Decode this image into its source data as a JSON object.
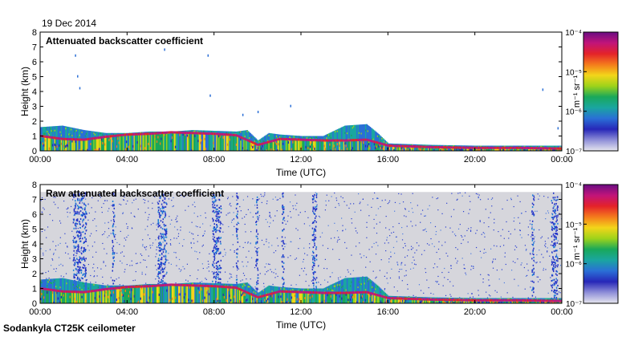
{
  "date": "19 Dec 2014",
  "footer": "Sodankyla CT25K ceilometer",
  "colorbar_colors": [
    "#6a0d83",
    "#c1147a",
    "#e4222a",
    "#f47b1c",
    "#f3d51a",
    "#9ed31a",
    "#19a85a",
    "#1aa6a0",
    "#2a6fd6",
    "#2727b8",
    "#8f8fd8",
    "#e6e6ee"
  ],
  "chart_data": [
    {
      "type": "heatmap",
      "title": "Attenuated backscatter coefficient",
      "xlabel": "Time (UTC)",
      "ylabel": "Height (km)",
      "xlim": [
        0,
        24
      ],
      "ylim": [
        0,
        8
      ],
      "x_ticks": [
        "00:00",
        "04:00",
        "08:00",
        "12:00",
        "16:00",
        "20:00",
        "00:00"
      ],
      "y_ticks": [
        "0",
        "1",
        "2",
        "3",
        "4",
        "5",
        "6",
        "7",
        "8"
      ],
      "colorbar": {
        "scale": "log",
        "range": [
          1e-07,
          0.0001
        ],
        "unit": "m⁻¹ sr⁻¹",
        "ticks": [
          "10⁻⁷",
          "10⁻⁶",
          "10⁻⁵",
          "10⁻⁴"
        ]
      },
      "background_fill": "white",
      "boundary_layer": [
        {
          "x": 0,
          "y": 1.6
        },
        {
          "x": 1,
          "y": 1.7
        },
        {
          "x": 2,
          "y": 1.4
        },
        {
          "x": 3,
          "y": 1.2
        },
        {
          "x": 4,
          "y": 1.2
        },
        {
          "x": 5,
          "y": 1.3
        },
        {
          "x": 6,
          "y": 1.3
        },
        {
          "x": 7,
          "y": 1.4
        },
        {
          "x": 8,
          "y": 1.35
        },
        {
          "x": 9,
          "y": 1.3
        },
        {
          "x": 9.5,
          "y": 1.4
        },
        {
          "x": 10,
          "y": 0.7
        },
        {
          "x": 10.5,
          "y": 1.2
        },
        {
          "x": 11,
          "y": 1.1
        },
        {
          "x": 12,
          "y": 1.0
        },
        {
          "x": 13,
          "y": 1.0
        },
        {
          "x": 14,
          "y": 1.7
        },
        {
          "x": 15,
          "y": 1.8
        },
        {
          "x": 15.5,
          "y": 1.2
        },
        {
          "x": 16,
          "y": 0.5
        },
        {
          "x": 17,
          "y": 0.45
        },
        {
          "x": 18,
          "y": 0.4
        },
        {
          "x": 20,
          "y": 0.35
        },
        {
          "x": 22,
          "y": 0.35
        },
        {
          "x": 24,
          "y": 0.35
        }
      ],
      "cloud_base": [
        {
          "x": 0,
          "y": 1.0
        },
        {
          "x": 1,
          "y": 0.8
        },
        {
          "x": 2,
          "y": 0.75
        },
        {
          "x": 3,
          "y": 0.95
        },
        {
          "x": 4,
          "y": 1.1
        },
        {
          "x": 5,
          "y": 1.15
        },
        {
          "x": 6,
          "y": 1.25
        },
        {
          "x": 7,
          "y": 1.2
        },
        {
          "x": 8,
          "y": 1.15
        },
        {
          "x": 9,
          "y": 1.05
        },
        {
          "x": 10,
          "y": 0.4
        },
        {
          "x": 11,
          "y": 0.8
        },
        {
          "x": 12,
          "y": 0.75
        },
        {
          "x": 13,
          "y": 0.7
        },
        {
          "x": 14,
          "y": 0.7
        },
        {
          "x": 15,
          "y": 0.75
        },
        {
          "x": 16,
          "y": 0.35
        },
        {
          "x": 17,
          "y": 0.3
        },
        {
          "x": 18,
          "y": 0.25
        },
        {
          "x": 20,
          "y": 0.2
        },
        {
          "x": 22,
          "y": 0.2
        },
        {
          "x": 24,
          "y": 0.15
        }
      ]
    },
    {
      "type": "heatmap",
      "title": "Raw attenuated backscatter coefficient",
      "xlabel": "Time (UTC)",
      "ylabel": "Height (km)",
      "xlim": [
        0,
        24
      ],
      "ylim": [
        0,
        8
      ],
      "x_ticks": [
        "00:00",
        "04:00",
        "08:00",
        "12:00",
        "16:00",
        "20:00",
        "00:00"
      ],
      "y_ticks": [
        "0",
        "1",
        "2",
        "3",
        "4",
        "5",
        "6",
        "7",
        "8"
      ],
      "colorbar": {
        "scale": "log",
        "range": [
          1e-07,
          0.0001
        ],
        "unit": "m⁻¹ sr⁻¹",
        "ticks": [
          "10⁻⁷",
          "10⁻⁶",
          "10⁻⁵",
          "10⁻⁴"
        ]
      },
      "background_fill": "grey noise up to 7.5 km",
      "noise_columns": [
        {
          "x_start": 1.5,
          "x_end": 2.1
        },
        {
          "x_start": 3.3,
          "x_end": 3.4
        },
        {
          "x_start": 5.4,
          "x_end": 5.8
        },
        {
          "x_start": 7.9,
          "x_end": 8.3
        },
        {
          "x_start": 9.0,
          "x_end": 9.1
        },
        {
          "x_start": 9.9,
          "x_end": 10.0
        },
        {
          "x_start": 11.1,
          "x_end": 11.2
        },
        {
          "x_start": 12.5,
          "x_end": 12.7
        },
        {
          "x_start": 22.6,
          "x_end": 22.7
        },
        {
          "x_start": 23.5,
          "x_end": 23.8
        }
      ]
    }
  ]
}
